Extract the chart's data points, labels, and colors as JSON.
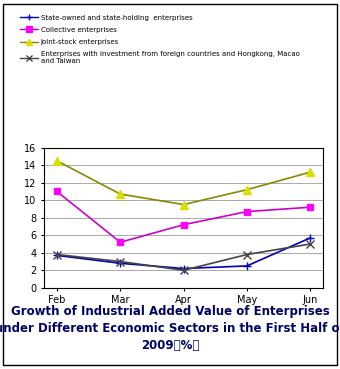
{
  "months": [
    "Feb",
    "Mar",
    "Apr",
    "May",
    "Jun"
  ],
  "series": [
    {
      "label": "State-owned and state-holding  enterprises",
      "values": [
        3.7,
        2.8,
        2.2,
        2.5,
        5.7
      ],
      "color": "#0000BB",
      "marker": "+",
      "marker_color": "#0000BB",
      "linewidth": 1.2,
      "markersize": 6
    },
    {
      "label": "Collective enterprises",
      "values": [
        11.0,
        5.2,
        7.2,
        8.7,
        9.2
      ],
      "color": "#CC00CC",
      "marker": "s",
      "marker_color": "#FF00FF",
      "linewidth": 1.2,
      "markersize": 5
    },
    {
      "label": "Joint-stock enterprises",
      "values": [
        14.5,
        10.7,
        9.5,
        11.2,
        13.2
      ],
      "color": "#888800",
      "marker": "^",
      "marker_color": "#DDDD00",
      "linewidth": 1.2,
      "markersize": 6
    },
    {
      "label": "Enterprises with investment from foreign countries and Hongkong, Macao\nand Taiwan",
      "values": [
        3.8,
        3.0,
        2.0,
        3.8,
        5.0
      ],
      "color": "#444444",
      "marker": "x",
      "marker_color": "#444444",
      "linewidth": 1.2,
      "markersize": 6
    }
  ],
  "ylim": [
    0,
    16
  ],
  "yticks": [
    0,
    2,
    4,
    6,
    8,
    10,
    12,
    14,
    16
  ],
  "xlabel": "",
  "ylabel": "",
  "title_line1": "Growth of Industrial Added Value of Enterprises",
  "title_line2": "under Different Economic Sectors in the First Half of",
  "title_line3": "2009（%）",
  "legend_fontsize": 5.0,
  "tick_fontsize": 7,
  "title_fontsize": 8.5,
  "bg_color": "#ffffff",
  "grid_color": "#888888",
  "box_color": "#000000",
  "outer_box": true
}
